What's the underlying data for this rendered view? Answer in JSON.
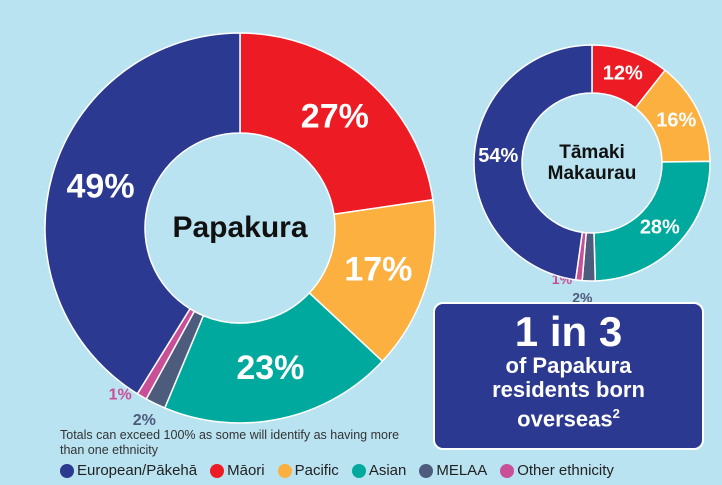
{
  "chart_data": [
    {
      "type": "donut",
      "center_label": "Papakura",
      "categories": [
        "European/Pākehā",
        "Māori",
        "Pacific",
        "Asian",
        "MELAA",
        "Other ethnicity"
      ],
      "values": [
        49,
        27,
        17,
        23,
        2,
        1
      ],
      "value_labels": [
        "49%",
        "27%",
        "17%",
        "23%",
        "2%",
        "1%"
      ],
      "colors": [
        "#2b3990",
        "#ed1c24",
        "#fbb040",
        "#00a99d",
        "#4d5b7c",
        "#c94f97"
      ]
    },
    {
      "type": "donut",
      "center_label": "Tāmaki Makaurau",
      "categories": [
        "European/Pākehā",
        "Māori",
        "Pacific",
        "Asian",
        "MELAA",
        "Other ethnicity"
      ],
      "values": [
        54,
        12,
        16,
        28,
        2,
        1
      ],
      "value_labels": [
        "54%",
        "12%",
        "16%",
        "28%",
        "2%",
        "1%"
      ],
      "colors": [
        "#2b3990",
        "#ed1c24",
        "#fbb040",
        "#00a99d",
        "#4d5b7c",
        "#c94f97"
      ]
    }
  ],
  "callout": {
    "headline": "1 in 3",
    "text": "of Papakura residents born overseas",
    "footnote_mark": "2"
  },
  "note": "Totals can exceed 100% as some will identify as having more than one ethnicity"
}
